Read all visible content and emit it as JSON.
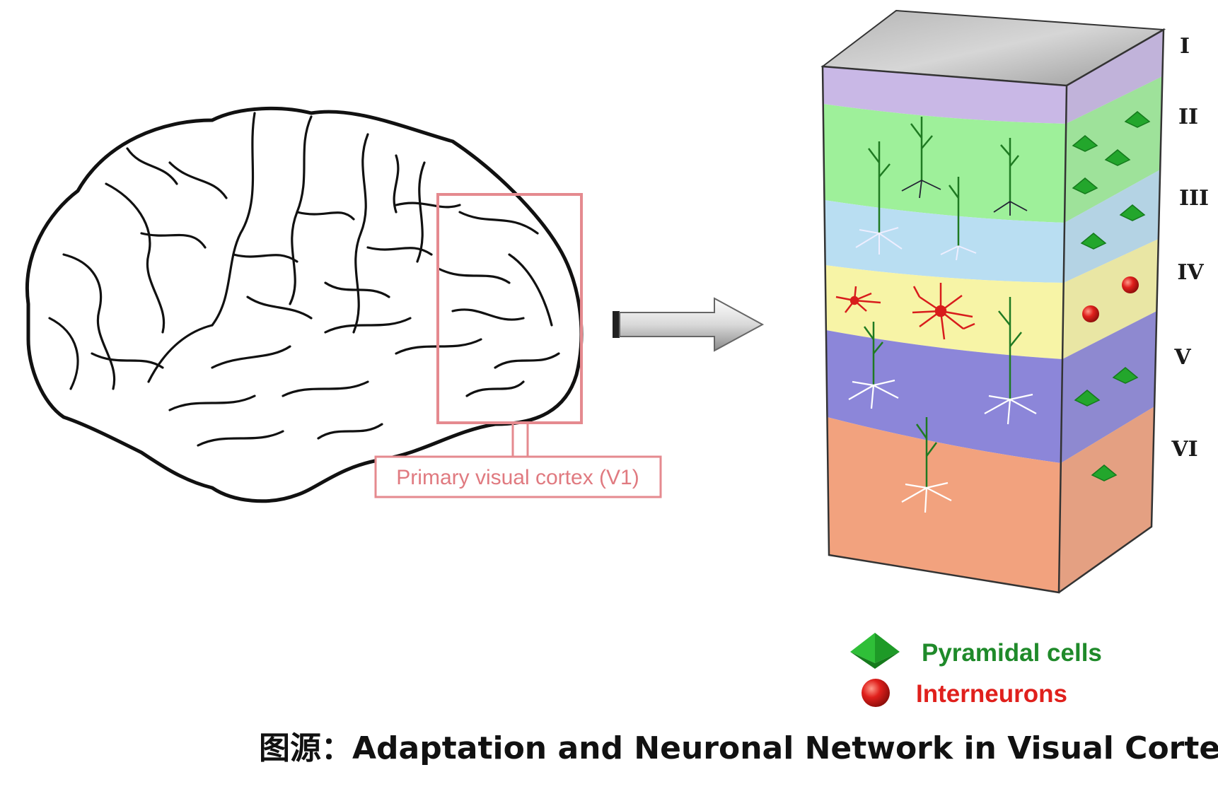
{
  "callout": {
    "label": "Primary visual cortex (V1)",
    "box_color": "#e58a8f"
  },
  "layers": [
    {
      "label": "I",
      "color": "#c9b8e6"
    },
    {
      "label": "II",
      "color": "#9ef09a"
    },
    {
      "label": "III",
      "color": "#b9def2"
    },
    {
      "label": "IV",
      "color": "#f7f4a6"
    },
    {
      "label": "V",
      "color": "#8c86d9"
    },
    {
      "label": "VI",
      "color": "#f2a27e"
    }
  ],
  "legend": {
    "pyramidal": {
      "label": "Pyramidal cells",
      "color": "#1f8a2a"
    },
    "interneuron": {
      "label": "Interneurons",
      "color": "#e0201c"
    }
  },
  "caption": "图源：Adaptation and Neuronal Network in Visual Cortex",
  "icons": [
    "brain-outline",
    "right-arrow-icon",
    "cortex-column",
    "pyramidal-cell-icon",
    "interneuron-icon"
  ]
}
